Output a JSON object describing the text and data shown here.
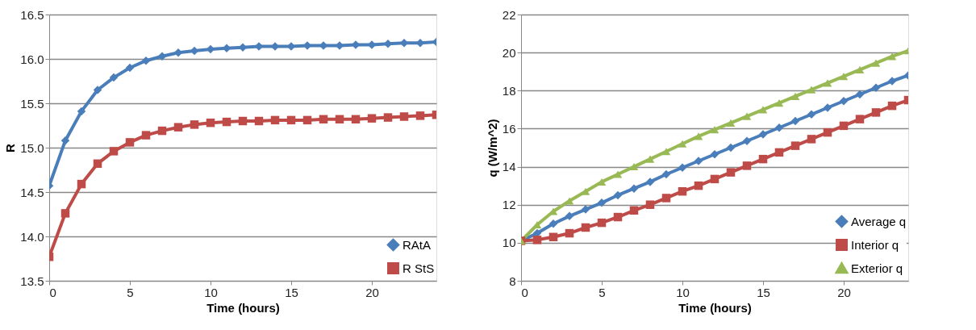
{
  "chart_data": [
    {
      "type": "line",
      "xlabel": "Time (hours)",
      "ylabel": "R",
      "x": [
        0,
        1,
        2,
        3,
        4,
        5,
        6,
        7,
        8,
        9,
        10,
        11,
        12,
        13,
        14,
        15,
        16,
        17,
        18,
        19,
        20,
        21,
        22,
        23,
        24
      ],
      "xlim": [
        0,
        24
      ],
      "xticks": [
        0,
        5,
        10,
        15,
        20
      ],
      "ylim": [
        13.5,
        16.5
      ],
      "yticks": [
        13.5,
        {
          "value": 14,
          "label": "14.0"
        },
        14.5,
        {
          "value": 15,
          "label": "15.0"
        },
        15.5,
        {
          "value": 16,
          "label": "16.0"
        },
        16.5
      ],
      "grid": "y",
      "legend": "bottom right",
      "line_style": "solid",
      "series": [
        {
          "name": "RAtA",
          "color": "#4a7ebb",
          "marker": "diamond",
          "values": [
            14.57,
            15.08,
            15.41,
            15.65,
            15.79,
            15.9,
            15.98,
            16.03,
            16.07,
            16.09,
            16.11,
            16.12,
            16.13,
            16.14,
            16.14,
            16.14,
            16.15,
            16.15,
            16.15,
            16.16,
            16.16,
            16.17,
            16.18,
            16.18,
            16.19
          ]
        },
        {
          "name": "R StS",
          "color": "#be4b48",
          "marker": "square",
          "values": [
            13.77,
            14.26,
            14.59,
            14.82,
            14.96,
            15.06,
            15.14,
            15.19,
            15.23,
            15.26,
            15.28,
            15.29,
            15.3,
            15.3,
            15.31,
            15.31,
            15.31,
            15.32,
            15.32,
            15.32,
            15.33,
            15.34,
            15.35,
            15.36,
            15.37
          ]
        }
      ]
    },
    {
      "type": "line",
      "xlabel": "Time (hours)",
      "ylabel": "q (W/m^2)",
      "x": [
        0,
        1,
        2,
        3,
        4,
        5,
        6,
        7,
        8,
        9,
        10,
        11,
        12,
        13,
        14,
        15,
        16,
        17,
        18,
        19,
        20,
        21,
        22,
        23,
        24
      ],
      "xlim": [
        0,
        24
      ],
      "xticks": [
        0,
        5,
        10,
        15,
        20
      ],
      "ylim": [
        8,
        22
      ],
      "yticks": [
        8,
        10,
        12,
        14,
        16,
        18,
        20,
        22
      ],
      "grid": "y",
      "legend": "bottom right",
      "line_style": "solid",
      "series": [
        {
          "name": "Average q",
          "color": "#4a7ebb",
          "marker": "diamond",
          "values": [
            10.1,
            10.5,
            11.0,
            11.4,
            11.75,
            12.1,
            12.5,
            12.85,
            13.2,
            13.6,
            13.95,
            14.3,
            14.65,
            15.0,
            15.35,
            15.7,
            16.05,
            16.4,
            16.75,
            17.1,
            17.45,
            17.8,
            18.15,
            18.5,
            18.8
          ]
        },
        {
          "name": "Interior q",
          "color": "#be4b48",
          "marker": "square",
          "values": [
            10.1,
            10.15,
            10.3,
            10.5,
            10.8,
            11.05,
            11.35,
            11.7,
            12.0,
            12.35,
            12.7,
            13.0,
            13.35,
            13.7,
            14.05,
            14.4,
            14.75,
            15.1,
            15.45,
            15.8,
            16.15,
            16.5,
            16.85,
            17.2,
            17.5
          ]
        },
        {
          "name": "Exterior q",
          "color": "#98b954",
          "marker": "triangle",
          "values": [
            10.1,
            10.95,
            11.65,
            12.2,
            12.7,
            13.2,
            13.6,
            14.0,
            14.4,
            14.8,
            15.2,
            15.6,
            15.95,
            16.3,
            16.65,
            17.0,
            17.35,
            17.7,
            18.05,
            18.4,
            18.75,
            19.1,
            19.45,
            19.8,
            20.1
          ]
        }
      ]
    }
  ]
}
